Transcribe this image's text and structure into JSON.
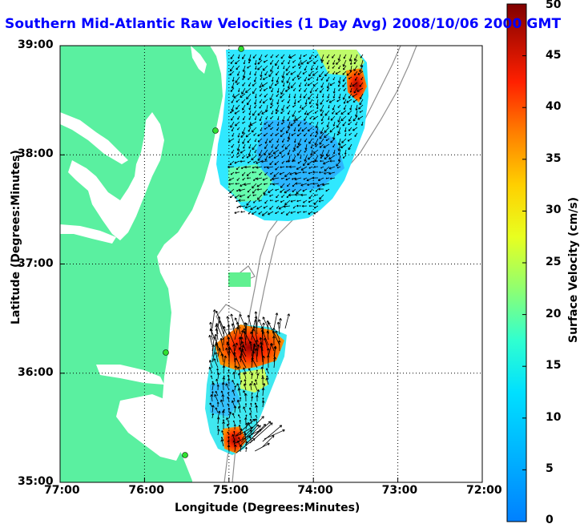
{
  "title": "Southern Mid-Atlantic Raw Velocities (1 Day Avg) 2008/10/06 2000 GMT",
  "xlabel": "Longitude (Degrees:Minutes)",
  "ylabel": "Latitude (Degrees:Minutes)",
  "colorbar": {
    "label": "Surface Velocity (cm/s)",
    "min": 0,
    "max": 50,
    "ticks": [
      "0",
      "5",
      "10",
      "15",
      "20",
      "25",
      "30",
      "35",
      "40",
      "45",
      "50"
    ]
  },
  "axes": {
    "lon_ticks": [
      "77:00",
      "76:00",
      "75:00",
      "74:00",
      "73:00",
      "72:00"
    ],
    "lat_ticks": [
      "35:00",
      "36:00",
      "37:00",
      "38:00",
      "39:00"
    ],
    "grid": "dotted"
  },
  "colors": {
    "land": "#5af0a0",
    "title": "#0000ff",
    "station": "#30e030"
  }
}
